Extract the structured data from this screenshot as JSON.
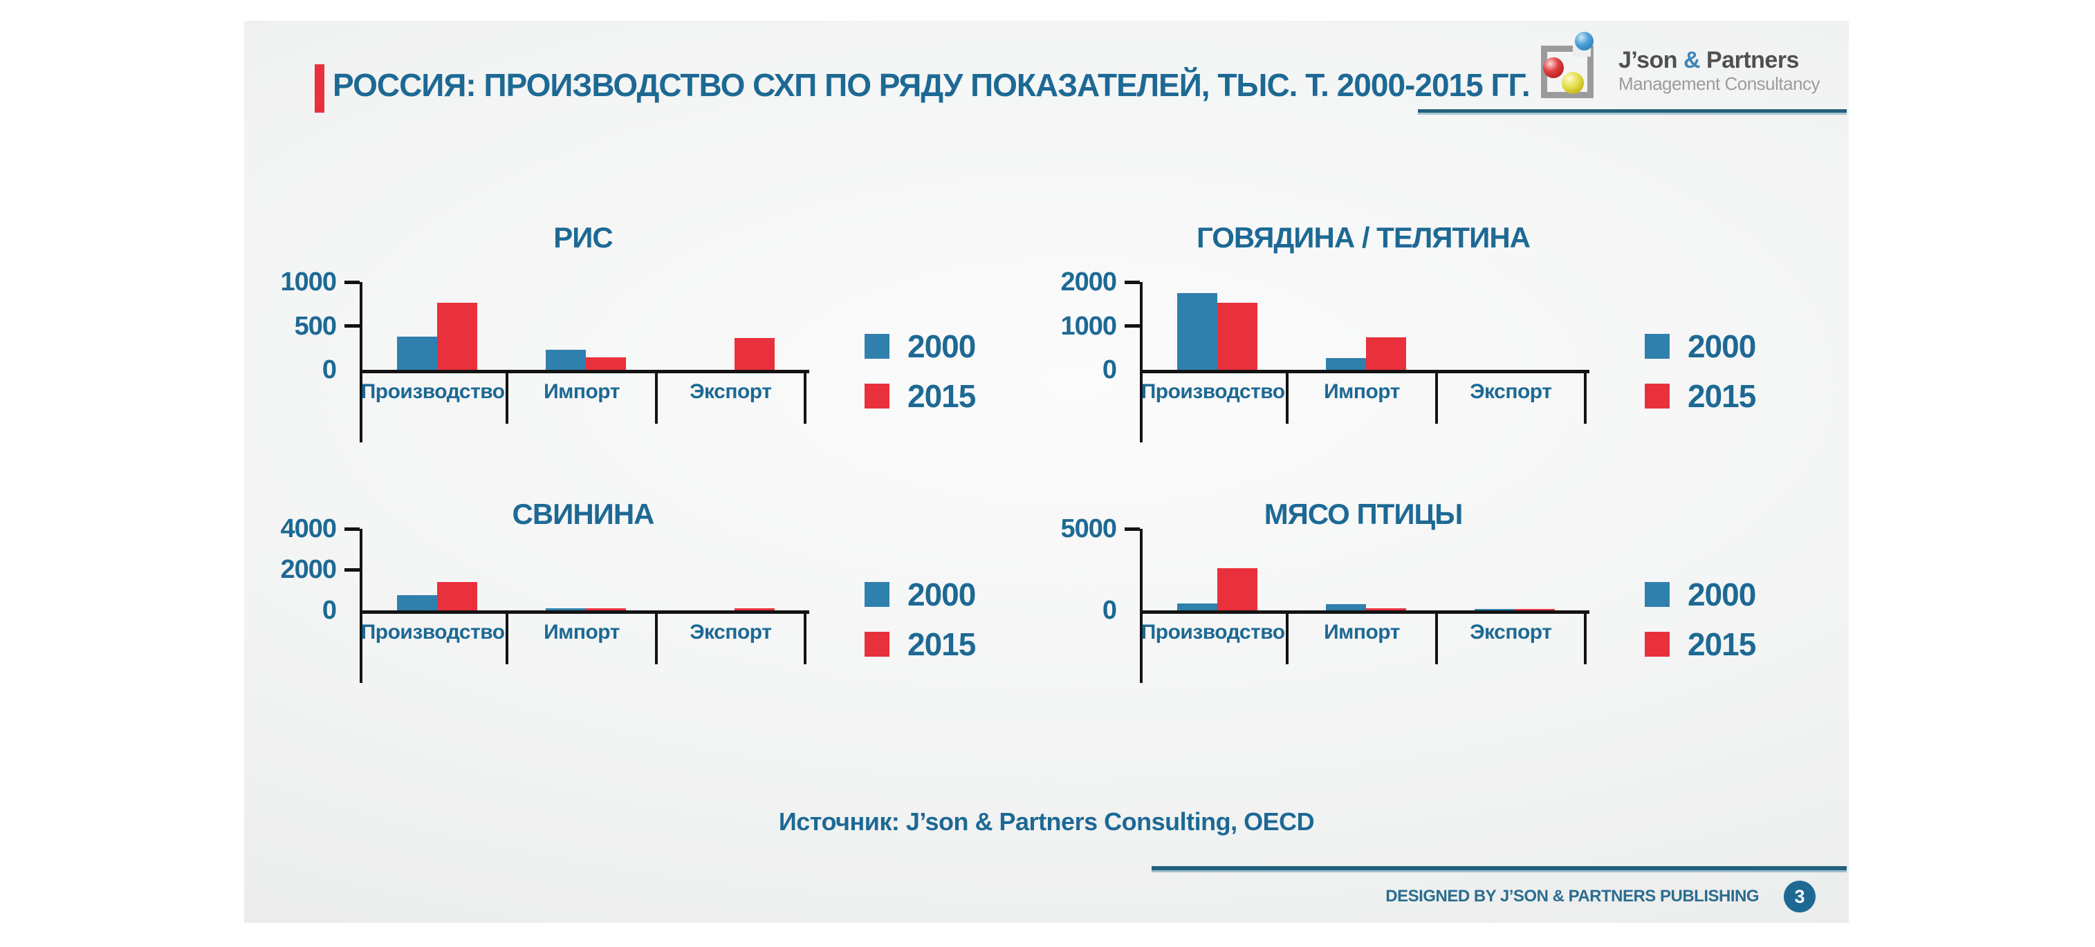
{
  "slide": {
    "title": "РОССИЯ: ПРОИЗВОДСТВО СХП ПО РЯДУ ПОКАЗАТЕЛЕЙ, ТЫС. Т. 2000-2015 ГГ.",
    "source_note": "Источник: J’son & Partners Consulting, OECD",
    "footer_note": "DESIGNED BY J’SON & PARTNERS PUBLISHING",
    "page_number": "3",
    "logo": {
      "name_left": "J’son ",
      "name_amp": "&",
      "name_right": " Partners",
      "subtitle": "Management Consultancy"
    }
  },
  "colors": {
    "accent_red": "#e8313c",
    "heading_teal": "#1d6994",
    "series_2000_blue": "#3080ae",
    "series_2015_red": "#e8313c",
    "axis_black": "#131313"
  },
  "chart_data": [
    {
      "type": "bar",
      "title": "РИС",
      "categories": [
        "Производство",
        "Импорт",
        "Экспорт"
      ],
      "series": [
        {
          "name": "2000",
          "color": "#3080ae",
          "values": [
            380,
            230,
            0
          ]
        },
        {
          "name": "2015",
          "color": "#e8313c",
          "values": [
            760,
            140,
            360
          ]
        }
      ],
      "ylim": [
        0,
        1000
      ],
      "yticks": [
        0,
        500,
        1000
      ],
      "xlabel": "",
      "ylabel": "",
      "grid": false,
      "legend_position": "right"
    },
    {
      "type": "bar",
      "title": "ГОВЯДИНА / ТЕЛЯТИНА",
      "categories": [
        "Производство",
        "Импорт",
        "Экспорт"
      ],
      "series": [
        {
          "name": "2000",
          "color": "#3080ae",
          "values": [
            1750,
            270,
            0
          ]
        },
        {
          "name": "2015",
          "color": "#e8313c",
          "values": [
            1530,
            740,
            0
          ]
        }
      ],
      "ylim": [
        0,
        2000
      ],
      "yticks": [
        0,
        1000,
        2000
      ],
      "xlabel": "",
      "ylabel": "",
      "grid": false,
      "legend_position": "right"
    },
    {
      "type": "bar",
      "title": "СВИНИНА",
      "categories": [
        "Производство",
        "Импорт",
        "Экспорт"
      ],
      "series": [
        {
          "name": "2000",
          "color": "#3080ae",
          "values": [
            750,
            100,
            0
          ]
        },
        {
          "name": "2015",
          "color": "#e8313c",
          "values": [
            1400,
            110,
            100
          ]
        }
      ],
      "ylim": [
        0,
        4000
      ],
      "yticks": [
        0,
        2000,
        4000
      ],
      "xlabel": "",
      "ylabel": "",
      "grid": false,
      "legend_position": "right"
    },
    {
      "type": "bar",
      "title": "МЯСО ПТИЦЫ",
      "categories": [
        "Производство",
        "Импорт",
        "Экспорт"
      ],
      "series": [
        {
          "name": "2000",
          "color": "#3080ae",
          "values": [
            410,
            400,
            80
          ]
        },
        {
          "name": "2015",
          "color": "#e8313c",
          "values": [
            2600,
            110,
            100
          ]
        }
      ],
      "ylim": [
        0,
        5000
      ],
      "yticks": [
        0,
        5000
      ],
      "xlabel": "",
      "ylabel": "",
      "grid": false,
      "legend_position": "right"
    }
  ]
}
